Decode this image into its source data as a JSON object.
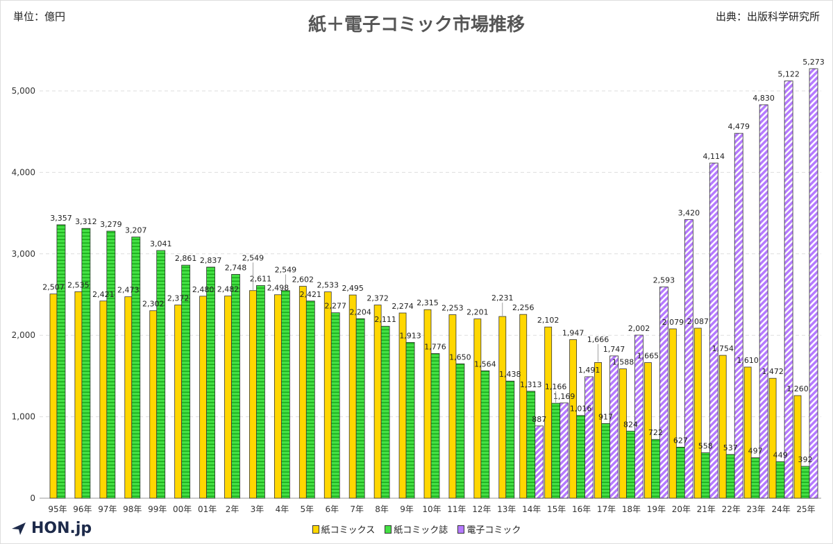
{
  "header": {
    "unit": "単位：億円",
    "title": "紙＋電子コミック市場推移",
    "source": "出典：出版科学研究所"
  },
  "logo": {
    "text": "HON.jp"
  },
  "colors": {
    "paper_comics": "#ffd700",
    "paper_magazines": "#44e044",
    "digital": "#b57aff"
  },
  "chart_data": {
    "type": "bar",
    "title": "紙＋電子コミック市場推移",
    "ylim": [
      0,
      5300
    ],
    "yticks": [
      0,
      1000,
      2000,
      3000,
      4000,
      5000
    ],
    "grid": true,
    "legend_placement": "bottom",
    "categories": [
      "95年",
      "96年",
      "97年",
      "98年",
      "99年",
      "00年",
      "01年",
      "2年",
      "3年",
      "4年",
      "5年",
      "6年",
      "7年",
      "8年",
      "9年",
      "10年",
      "11年",
      "12年",
      "13年",
      "14年",
      "15年",
      "16年",
      "17年",
      "18年",
      "19年",
      "20年",
      "21年",
      "22年",
      "23年",
      "24年",
      "25年"
    ],
    "series": [
      {
        "name": "紙コミックス",
        "values": [
          2507,
          2535,
          2421,
          2473,
          2302,
          2372,
          2480,
          2482,
          2549,
          2498,
          2602,
          2533,
          2495,
          2372,
          2274,
          2315,
          2253,
          2201,
          2231,
          2256,
          2102,
          1947,
          1666,
          1588,
          1665,
          2079,
          2087,
          1754,
          1610,
          1472,
          1260
        ]
      },
      {
        "name": "紙コミック誌",
        "values": [
          3357,
          3312,
          3279,
          3207,
          3041,
          2861,
          2837,
          2748,
          2611,
          2549,
          2421,
          2277,
          2204,
          2111,
          1913,
          1776,
          1650,
          1564,
          1438,
          1313,
          1166,
          1016,
          917,
          824,
          722,
          627,
          558,
          537,
          497,
          449,
          392
        ]
      },
      {
        "name": "電子コミック",
        "values": [
          null,
          null,
          null,
          null,
          null,
          null,
          null,
          null,
          null,
          null,
          null,
          null,
          null,
          null,
          null,
          null,
          null,
          null,
          null,
          887,
          1169,
          1491,
          1747,
          2002,
          2593,
          3420,
          4114,
          4479,
          4830,
          5122,
          5273
        ]
      }
    ]
  }
}
